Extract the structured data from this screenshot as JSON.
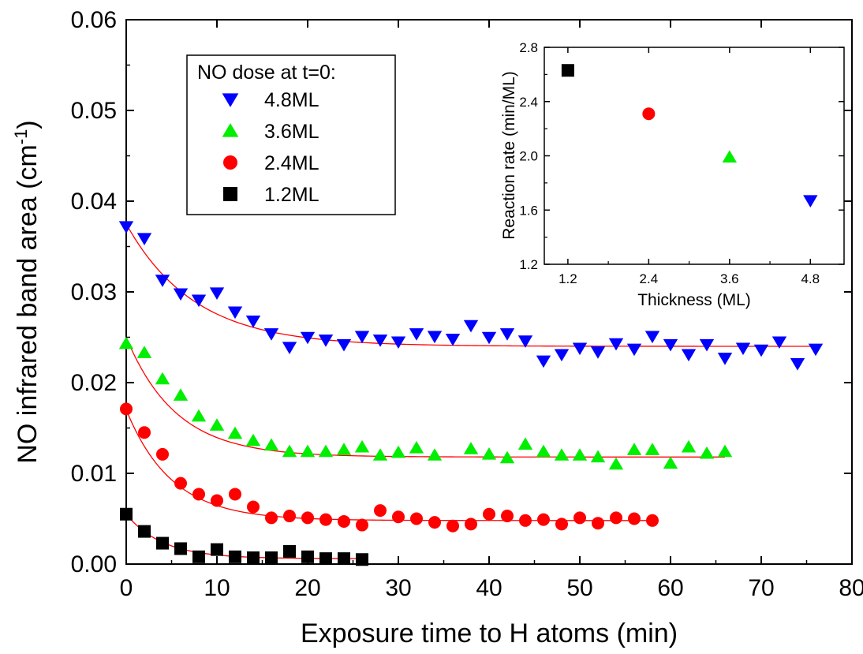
{
  "colors": {
    "series_4_8": "#0000ff",
    "series_3_6": "#00ee00",
    "series_2_4": "#ff0000",
    "series_1_2": "#000000",
    "fit_curve": "#ff0000",
    "axis": "#000000"
  },
  "legend": {
    "title": "NO dose at t=0:",
    "placement": "top-left",
    "entries": [
      {
        "label": "4.8ML",
        "series": "s48"
      },
      {
        "label": "3.6ML",
        "series": "s36"
      },
      {
        "label": "2.4ML",
        "series": "s24"
      },
      {
        "label": "1.2ML",
        "series": "s12"
      }
    ]
  },
  "chart_data": [
    {
      "type": "scatter",
      "xlabel": "Exposure time to H atoms (min)",
      "ylabel": "NO infrared band area (cm",
      "ylabel_sup": "-1",
      "ylabel_close": ")",
      "xlim": [
        0,
        80
      ],
      "ylim": [
        0,
        0.06
      ],
      "xticks": [
        "0",
        "10",
        "20",
        "30",
        "40",
        "50",
        "60",
        "70",
        "80"
      ],
      "yticks": [
        "0.00",
        "0.01",
        "0.02",
        "0.03",
        "0.04",
        "0.05",
        "0.06"
      ],
      "grid": false,
      "series": [
        {
          "id": "s48",
          "name": "4.8ML",
          "marker": "triangle-down",
          "color": "#0000ff",
          "x": [
            0,
            2,
            4,
            6,
            8,
            10,
            12,
            14,
            16,
            18,
            20,
            22,
            24,
            26,
            28,
            30,
            32,
            34,
            36,
            38,
            40,
            42,
            44,
            46,
            48,
            50,
            52,
            54,
            56,
            58,
            60,
            62,
            64,
            66,
            68,
            70,
            72,
            74,
            76
          ],
          "y": [
            0.0372,
            0.0359,
            0.0313,
            0.0298,
            0.0291,
            0.0299,
            0.0278,
            0.0268,
            0.0254,
            0.0239,
            0.025,
            0.0247,
            0.0242,
            0.0251,
            0.0247,
            0.0245,
            0.0254,
            0.0251,
            0.0248,
            0.0263,
            0.025,
            0.0254,
            0.0246,
            0.0224,
            0.0231,
            0.0238,
            0.0234,
            0.0243,
            0.0237,
            0.0251,
            0.0242,
            0.0231,
            0.0242,
            0.0227,
            0.0238,
            0.0236,
            0.0245,
            0.0221,
            0.0237
          ],
          "fit": {
            "a": 0.0135,
            "tau": 7.5,
            "c": 0.024
          }
        },
        {
          "id": "s36",
          "name": "3.6ML",
          "marker": "triangle-up",
          "color": "#00ee00",
          "x": [
            0,
            2,
            4,
            6,
            8,
            10,
            12,
            14,
            16,
            18,
            20,
            22,
            24,
            26,
            28,
            30,
            32,
            34,
            38,
            40,
            42,
            44,
            46,
            48,
            50,
            52,
            54,
            56,
            58,
            60,
            62,
            64,
            66
          ],
          "y": [
            0.0243,
            0.0233,
            0.0204,
            0.0186,
            0.0163,
            0.0153,
            0.0144,
            0.0136,
            0.0131,
            0.0124,
            0.0124,
            0.0124,
            0.0126,
            0.0129,
            0.012,
            0.0123,
            0.0128,
            0.012,
            0.0127,
            0.0121,
            0.0117,
            0.0132,
            0.0124,
            0.012,
            0.012,
            0.0118,
            0.011,
            0.0126,
            0.0126,
            0.0111,
            0.0129,
            0.0122,
            0.0124
          ],
          "fit": {
            "a": 0.0132,
            "tau": 5.5,
            "c": 0.0118
          }
        },
        {
          "id": "s24",
          "name": "2.4ML",
          "marker": "circle",
          "color": "#ff0000",
          "x": [
            0,
            2,
            4,
            6,
            8,
            10,
            12,
            14,
            16,
            18,
            20,
            22,
            24,
            26,
            28,
            30,
            32,
            34,
            36,
            38,
            40,
            42,
            44,
            46,
            48,
            50,
            52,
            54,
            56,
            58
          ],
          "y": [
            0.0171,
            0.0145,
            0.0121,
            0.0089,
            0.0077,
            0.007,
            0.0077,
            0.0063,
            0.0051,
            0.0053,
            0.0051,
            0.0049,
            0.0047,
            0.0043,
            0.0059,
            0.0052,
            0.005,
            0.0046,
            0.0042,
            0.0044,
            0.0055,
            0.0053,
            0.0048,
            0.0049,
            0.0044,
            0.0051,
            0.0045,
            0.0051,
            0.005,
            0.0048
          ],
          "fit": {
            "a": 0.0122,
            "tau": 5.0,
            "c": 0.0048
          }
        },
        {
          "id": "s12",
          "name": "1.2ML",
          "marker": "square",
          "color": "#000000",
          "x": [
            0,
            2,
            4,
            6,
            8,
            10,
            12,
            14,
            16,
            18,
            20,
            22,
            24,
            26
          ],
          "y": [
            0.0055,
            0.0036,
            0.0023,
            0.0017,
            0.0008,
            0.0016,
            0.0008,
            0.0007,
            0.0007,
            0.0014,
            0.0008,
            0.0006,
            0.0006,
            0.0005
          ],
          "fit": {
            "a": 0.0049,
            "tau": 4.0,
            "c": 0.0006
          }
        }
      ]
    },
    {
      "type": "scatter",
      "role": "inset",
      "placement": "top-right",
      "xlabel": "Thickness (ML)",
      "ylabel": "Reaction rate (min/ML)",
      "xlim": [
        0.85,
        5.3
      ],
      "ylim": [
        1.2,
        2.8
      ],
      "xticks": [
        "1.2",
        "2.4",
        "3.6",
        "4.8"
      ],
      "yticks": [
        "1.2",
        "1.6",
        "2.0",
        "2.4",
        "2.8"
      ],
      "points": [
        {
          "x": 1.2,
          "y": 2.63,
          "marker": "square",
          "color": "#000000"
        },
        {
          "x": 2.4,
          "y": 2.31,
          "marker": "circle",
          "color": "#ff0000"
        },
        {
          "x": 3.6,
          "y": 1.99,
          "marker": "triangle-up",
          "color": "#00ee00"
        },
        {
          "x": 4.8,
          "y": 1.67,
          "marker": "triangle-down",
          "color": "#0000ff"
        }
      ]
    }
  ]
}
